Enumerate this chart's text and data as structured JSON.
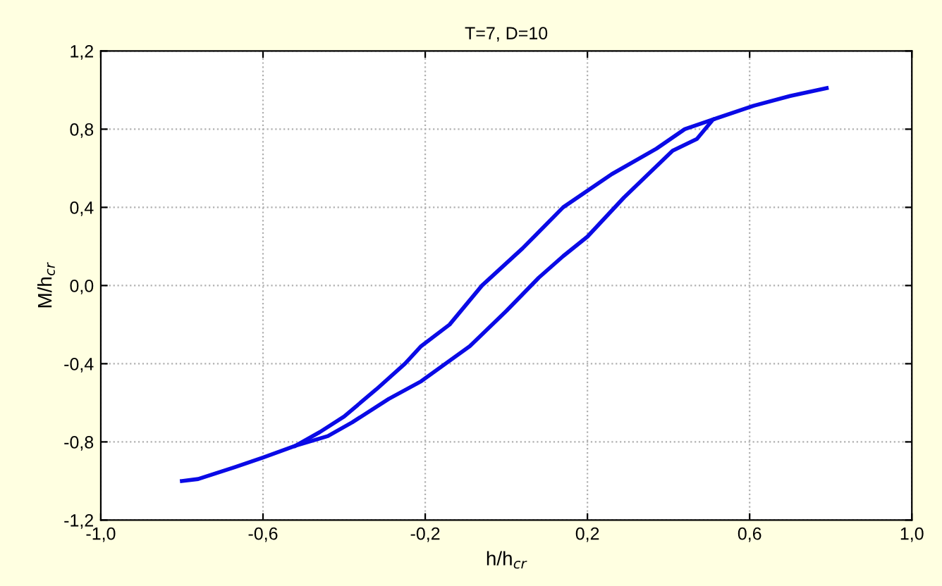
{
  "chart_data": {
    "type": "line",
    "title": "T=7, D=10",
    "xlabel": "h/h$_{cr}$",
    "ylabel": "M/h$_{cr}$",
    "xlim": [
      -1.0,
      1.0
    ],
    "ylim": [
      -1.2,
      1.2
    ],
    "xticks": [
      {
        "value": -1.0,
        "label": "-1,0"
      },
      {
        "value": -0.6,
        "label": "-0,6"
      },
      {
        "value": -0.2,
        "label": "-0,2"
      },
      {
        "value": 0.2,
        "label": "0,2"
      },
      {
        "value": 0.6,
        "label": "0,6"
      },
      {
        "value": 1.0,
        "label": "1,0"
      }
    ],
    "yticks": [
      {
        "value": -1.2,
        "label": "-1,2"
      },
      {
        "value": -0.8,
        "label": "-0,8"
      },
      {
        "value": -0.4,
        "label": "-0,4"
      },
      {
        "value": 0.0,
        "label": "0,0"
      },
      {
        "value": 0.4,
        "label": "0,4"
      },
      {
        "value": 0.8,
        "label": "0,8"
      },
      {
        "value": 1.2,
        "label": "1,2"
      }
    ],
    "grid": true,
    "line_style": "solid",
    "marker": "none",
    "series": [
      {
        "color": "#0a0ae6",
        "x": [
          -0.8,
          -0.76,
          -0.67,
          -0.6,
          -0.52,
          -0.44,
          -0.38,
          -0.29,
          -0.21,
          -0.09,
          0.0,
          0.08,
          0.14,
          0.2,
          0.29,
          0.41,
          0.47,
          0.51,
          0.61,
          0.7,
          0.79
        ],
        "values": [
          -1.0,
          -0.99,
          -0.93,
          -0.88,
          -0.82,
          -0.77,
          -0.7,
          -0.58,
          -0.49,
          -0.31,
          -0.13,
          0.04,
          0.15,
          0.25,
          0.45,
          0.69,
          0.75,
          0.85,
          0.92,
          0.97,
          1.01
        ]
      },
      {
        "color": "#0a0ae6",
        "x": [
          -0.52,
          -0.46,
          -0.4,
          -0.32,
          -0.25,
          -0.21,
          -0.14,
          -0.06,
          0.04,
          0.14,
          0.26,
          0.37,
          0.44,
          0.51
        ],
        "values": [
          -0.82,
          -0.75,
          -0.67,
          -0.53,
          -0.4,
          -0.31,
          -0.2,
          0.0,
          0.19,
          0.4,
          0.57,
          0.7,
          0.8,
          0.85
        ]
      }
    ]
  }
}
